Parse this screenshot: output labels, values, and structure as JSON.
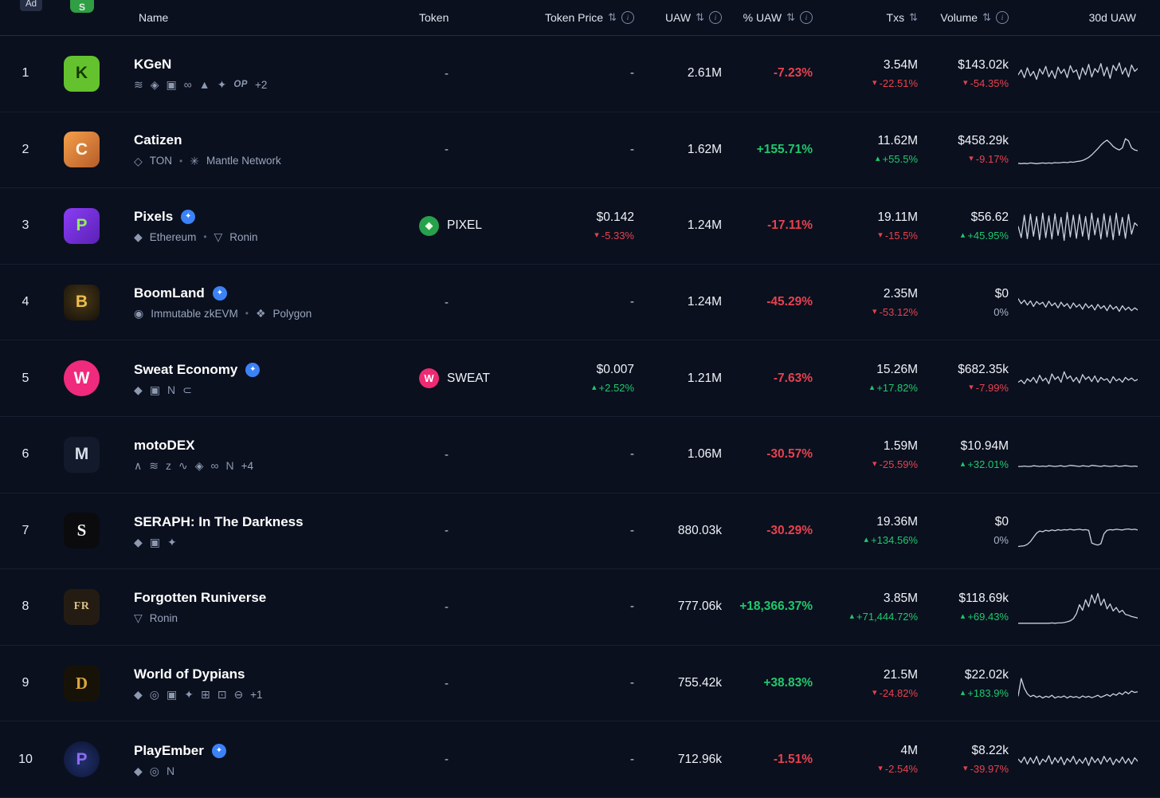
{
  "ad": {
    "label": "Ad"
  },
  "colors": {
    "positive": "#1fc96d",
    "negative": "#e8414f",
    "accent": "#3b82f6",
    "spark": "#cbd2df"
  },
  "table": {
    "columns": [
      {
        "key": "name",
        "label": "Name",
        "sortable": false,
        "info": false
      },
      {
        "key": "token",
        "label": "Token",
        "sortable": false,
        "info": false
      },
      {
        "key": "token_price",
        "label": "Token Price",
        "sortable": true,
        "info": true
      },
      {
        "key": "uaw",
        "label": "UAW",
        "sortable": true,
        "info": true
      },
      {
        "key": "uaw_pct",
        "label": "% UAW",
        "sortable": true,
        "info": true
      },
      {
        "key": "txs",
        "label": "Txs",
        "sortable": true,
        "info": false
      },
      {
        "key": "volume",
        "label": "Volume",
        "sortable": true,
        "info": true
      },
      {
        "key": "uaw_30d",
        "label": "30d UAW",
        "sortable": false,
        "info": false
      }
    ],
    "rows": [
      {
        "rank": "1",
        "name": "KGeN",
        "verified": false,
        "logo": {
          "bg": "#64c22e",
          "fg": "#143a00",
          "text": "K"
        },
        "chains": [
          {
            "name": "layers-chain",
            "glyph": "≋"
          },
          {
            "name": "bnb-chain",
            "glyph": "◈"
          },
          {
            "name": "immutable",
            "glyph": "▣"
          },
          {
            "name": "chain-link",
            "glyph": "∞"
          },
          {
            "name": "avalanche",
            "glyph": "▲"
          },
          {
            "name": "base",
            "glyph": "✦"
          },
          {
            "name": "optimism",
            "glyph": "OP"
          }
        ],
        "chains_extra": "+2",
        "token": null,
        "price": null,
        "uaw": "2.61M",
        "uaw_pct": {
          "value": "-7.23%",
          "dir": "down"
        },
        "txs": {
          "value": "3.54M",
          "change": "-22.51%",
          "dir": "down"
        },
        "volume": {
          "value": "$143.02k",
          "change": "-54.35%",
          "dir": "down"
        },
        "spark": [
          48,
          62,
          40,
          68,
          45,
          58,
          35,
          65,
          50,
          72,
          42,
          60,
          38,
          70,
          52,
          64,
          40,
          74,
          55,
          62,
          35,
          68,
          48,
          78,
          42,
          66,
          55,
          80,
          45,
          70,
          38,
          75,
          60,
          82,
          50,
          68,
          42,
          76,
          58,
          66
        ]
      },
      {
        "rank": "2",
        "name": "Catizen",
        "verified": false,
        "logo": {
          "bg": "linear-gradient(135deg,#f5a04a,#b65c2a)",
          "fg": "#fff7e8",
          "text": "C"
        },
        "chains": [
          {
            "name": "ton",
            "glyph": "◇",
            "label": "TON"
          },
          {
            "name": "mantle",
            "glyph": "✳",
            "label": "Mantle Network"
          }
        ],
        "chains_extra": "",
        "token": null,
        "price": null,
        "uaw": "1.62M",
        "uaw_pct": {
          "value": "+155.71%",
          "dir": "up"
        },
        "txs": {
          "value": "11.62M",
          "change": "+55.5%",
          "dir": "up"
        },
        "volume": {
          "value": "$458.29k",
          "change": "-9.17%",
          "dir": "down"
        },
        "spark": [
          14,
          13,
          14,
          13,
          15,
          14,
          13,
          14,
          15,
          14,
          15,
          14,
          16,
          15,
          16,
          17,
          16,
          18,
          17,
          19,
          20,
          22,
          26,
          31,
          38,
          47,
          56,
          66,
          74,
          80,
          72,
          62,
          56,
          52,
          58,
          84,
          78,
          58,
          52,
          50
        ]
      },
      {
        "rank": "3",
        "name": "Pixels",
        "verified": true,
        "logo": {
          "bg": "linear-gradient(135deg,#8b3df5,#5b21b6)",
          "fg": "#8df05a",
          "text": "P"
        },
        "chains": [
          {
            "name": "ethereum",
            "glyph": "◆",
            "label": "Ethereum"
          },
          {
            "name": "ronin",
            "glyph": "▽",
            "label": "Ronin"
          }
        ],
        "chains_extra": "",
        "token": {
          "symbol": "PIXEL",
          "glyph": "◆",
          "bg": "#27a14b",
          "fg": "#eaffe9"
        },
        "price": {
          "value": "$0.142",
          "change": "-5.33%",
          "dir": "down"
        },
        "uaw": "1.24M",
        "uaw_pct": {
          "value": "-17.11%",
          "dir": "down"
        },
        "txs": {
          "value": "19.11M",
          "change": "-15.5%",
          "dir": "down"
        },
        "volume": {
          "value": "$56.62",
          "change": "+45.95%",
          "dir": "up"
        },
        "spark": [
          50,
          18,
          82,
          15,
          85,
          22,
          78,
          12,
          88,
          18,
          80,
          14,
          86,
          24,
          76,
          10,
          90,
          20,
          82,
          16,
          84,
          22,
          78,
          12,
          88,
          26,
          74,
          14,
          86,
          20,
          80,
          12,
          88,
          24,
          76,
          16,
          84,
          28,
          60,
          52
        ]
      },
      {
        "rank": "4",
        "name": "BoomLand",
        "verified": true,
        "logo": {
          "bg": "radial-gradient(circle at 50% 42%,#4a3a18,#151009)",
          "fg": "#edbf4e",
          "text": "B"
        },
        "chains": [
          {
            "name": "immutable-zkevm",
            "glyph": "◉",
            "label": "Immutable zkEVM"
          },
          {
            "name": "polygon",
            "glyph": "❖",
            "label": "Polygon"
          }
        ],
        "chains_extra": "",
        "token": null,
        "price": null,
        "uaw": "1.24M",
        "uaw_pct": {
          "value": "-45.29%",
          "dir": "down"
        },
        "txs": {
          "value": "2.35M",
          "change": "-53.12%",
          "dir": "down"
        },
        "volume": {
          "value": "$0",
          "change": "0%",
          "dir": "flat"
        },
        "spark": [
          62,
          48,
          58,
          44,
          56,
          40,
          54,
          46,
          52,
          38,
          55,
          42,
          50,
          36,
          52,
          40,
          48,
          34,
          50,
          38,
          46,
          32,
          48,
          36,
          44,
          30,
          46,
          34,
          42,
          28,
          44,
          32,
          40,
          26,
          42,
          30,
          38,
          28,
          36,
          30
        ]
      },
      {
        "rank": "5",
        "name": "Sweat Economy",
        "verified": true,
        "logo": {
          "bg": "#f02a7c",
          "fg": "#ffffff",
          "text": "W",
          "round": true
        },
        "chains": [
          {
            "name": "ethereum",
            "glyph": "◆"
          },
          {
            "name": "immutable",
            "glyph": "▣"
          },
          {
            "name": "near",
            "glyph": "N"
          },
          {
            "name": "flow",
            "glyph": "⊂"
          }
        ],
        "chains_extra": "",
        "token": {
          "symbol": "SWEAT",
          "glyph": "W",
          "bg": "#ee2b72",
          "fg": "#ffffff"
        },
        "price": {
          "value": "$0.007",
          "change": "+2.52%",
          "dir": "up"
        },
        "uaw": "1.21M",
        "uaw_pct": {
          "value": "-7.63%",
          "dir": "down"
        },
        "txs": {
          "value": "15.26M",
          "change": "+17.82%",
          "dir": "up"
        },
        "volume": {
          "value": "$682.35k",
          "change": "-7.99%",
          "dir": "down"
        },
        "spark": [
          42,
          48,
          38,
          52,
          44,
          56,
          40,
          62,
          46,
          54,
          38,
          66,
          50,
          58,
          42,
          72,
          52,
          60,
          44,
          56,
          40,
          64,
          50,
          58,
          44,
          60,
          42,
          56,
          48,
          52,
          40,
          58,
          46,
          52,
          42,
          56,
          48,
          54,
          46,
          50
        ]
      },
      {
        "rank": "6",
        "name": "motoDEX",
        "verified": false,
        "logo": {
          "bg": "#131a2c",
          "fg": "#d7dde9",
          "text": "M"
        },
        "chains": [
          {
            "name": "avalanche",
            "glyph": "∧"
          },
          {
            "name": "layers-chain",
            "glyph": "≋"
          },
          {
            "name": "zksync",
            "glyph": "z"
          },
          {
            "name": "sui",
            "glyph": "∿"
          },
          {
            "name": "bnb-chain",
            "glyph": "◈"
          },
          {
            "name": "chain-link",
            "glyph": "∞"
          },
          {
            "name": "near",
            "glyph": "N"
          }
        ],
        "chains_extra": "+4",
        "token": null,
        "price": null,
        "uaw": "1.06M",
        "uaw_pct": {
          "value": "-30.57%",
          "dir": "down"
        },
        "txs": {
          "value": "1.59M",
          "change": "-25.59%",
          "dir": "down"
        },
        "volume": {
          "value": "$10.94M",
          "change": "+32.01%",
          "dir": "up"
        },
        "spark": [
          18,
          18,
          19,
          18,
          18,
          20,
          19,
          18,
          19,
          18,
          20,
          19,
          18,
          19,
          20,
          18,
          19,
          21,
          20,
          19,
          18,
          20,
          19,
          18,
          21,
          20,
          19,
          18,
          20,
          19,
          18,
          19,
          20,
          18,
          19,
          20,
          19,
          18,
          19,
          18
        ]
      },
      {
        "rank": "7",
        "name": "SERAPH: In The Darkness",
        "verified": false,
        "logo": {
          "bg": "#0b0b0e",
          "fg": "#f5f5f5",
          "text": "S",
          "serif": true
        },
        "chains": [
          {
            "name": "ethereum",
            "glyph": "◆"
          },
          {
            "name": "immutable",
            "glyph": "▣"
          },
          {
            "name": "treasure",
            "glyph": "✦"
          }
        ],
        "chains_extra": "",
        "token": null,
        "price": null,
        "uaw": "880.03k",
        "uaw_pct": {
          "value": "-30.29%",
          "dir": "down"
        },
        "txs": {
          "value": "19.36M",
          "change": "+134.56%",
          "dir": "up"
        },
        "volume": {
          "value": "$0",
          "change": "0%",
          "dir": "flat"
        },
        "spark": [
          8,
          9,
          10,
          14,
          22,
          34,
          46,
          52,
          50,
          54,
          52,
          55,
          53,
          56,
          54,
          56,
          55,
          57,
          55,
          56,
          57,
          55,
          56,
          54,
          18,
          14,
          12,
          16,
          44,
          54,
          56,
          55,
          57,
          56,
          55,
          57,
          58,
          56,
          57,
          55
        ]
      },
      {
        "rank": "8",
        "name": "Forgotten Runiverse",
        "verified": false,
        "logo": {
          "bg": "#241c12",
          "fg": "#d9c08c",
          "text": "FR",
          "serif": true,
          "small": true
        },
        "chains": [
          {
            "name": "ronin",
            "glyph": "▽",
            "label": "Ronin"
          }
        ],
        "chains_extra": "",
        "token": null,
        "price": null,
        "uaw": "777.06k",
        "uaw_pct": {
          "value": "+18,366.37%",
          "dir": "up"
        },
        "txs": {
          "value": "3.85M",
          "change": "+71,444.72%",
          "dir": "up"
        },
        "volume": {
          "value": "$118.69k",
          "change": "+69.43%",
          "dir": "up"
        },
        "spark": [
          5,
          5,
          5,
          5,
          5,
          5,
          5,
          5,
          5,
          5,
          5,
          6,
          5,
          6,
          6,
          7,
          9,
          12,
          18,
          32,
          58,
          42,
          72,
          52,
          86,
          62,
          90,
          56,
          74,
          46,
          60,
          40,
          50,
          36,
          42,
          30,
          28,
          24,
          22,
          20
        ]
      },
      {
        "rank": "9",
        "name": "World of Dypians",
        "verified": false,
        "logo": {
          "bg": "#171208",
          "fg": "#d9a63c",
          "text": "D",
          "serif": true
        },
        "chains": [
          {
            "name": "ethereum",
            "glyph": "◆"
          },
          {
            "name": "optimism",
            "glyph": "◎"
          },
          {
            "name": "immutable",
            "glyph": "▣"
          },
          {
            "name": "base",
            "glyph": "✦"
          },
          {
            "name": "grid-chain",
            "glyph": "⊞"
          },
          {
            "name": "skale",
            "glyph": "⊡"
          },
          {
            "name": "stable-chain",
            "glyph": "⊖"
          }
        ],
        "chains_extra": "+1",
        "token": null,
        "price": null,
        "uaw": "755.42k",
        "uaw_pct": {
          "value": "+38.83%",
          "dir": "up"
        },
        "txs": {
          "value": "21.5M",
          "change": "-24.82%",
          "dir": "down"
        },
        "volume": {
          "value": "$22.02k",
          "change": "+183.9%",
          "dir": "up"
        },
        "spark": [
          16,
          66,
          38,
          22,
          14,
          18,
          12,
          16,
          10,
          15,
          12,
          18,
          10,
          14,
          12,
          16,
          10,
          15,
          12,
          14,
          10,
          16,
          12,
          15,
          11,
          14,
          18,
          12,
          16,
          20,
          15,
          22,
          18,
          25,
          20,
          28,
          22,
          30,
          26,
          28
        ]
      },
      {
        "rank": "10",
        "name": "PlayEmber",
        "verified": true,
        "logo": {
          "bg": "radial-gradient(circle at 50% 55%,#20306b,#0c1330)",
          "fg": "#8f6bf7",
          "text": "P",
          "round": true
        },
        "chains": [
          {
            "name": "ethereum",
            "glyph": "◆"
          },
          {
            "name": "optimism",
            "glyph": "◎"
          },
          {
            "name": "near",
            "glyph": "N"
          }
        ],
        "chains_extra": "",
        "token": null,
        "price": null,
        "uaw": "712.96k",
        "uaw_pct": {
          "value": "-1.51%",
          "dir": "down"
        },
        "txs": {
          "value": "4M",
          "change": "-2.54%",
          "dir": "down"
        },
        "volume": {
          "value": "$8.22k",
          "change": "-39.97%",
          "dir": "down"
        },
        "spark": [
          54,
          44,
          60,
          40,
          58,
          42,
          62,
          38,
          54,
          46,
          64,
          40,
          58,
          44,
          60,
          38,
          56,
          46,
          62,
          40,
          54,
          42,
          58,
          36,
          60,
          44,
          56,
          40,
          62,
          46,
          58,
          38,
          54,
          44,
          60,
          42,
          56,
          40,
          58,
          48
        ]
      }
    ]
  }
}
